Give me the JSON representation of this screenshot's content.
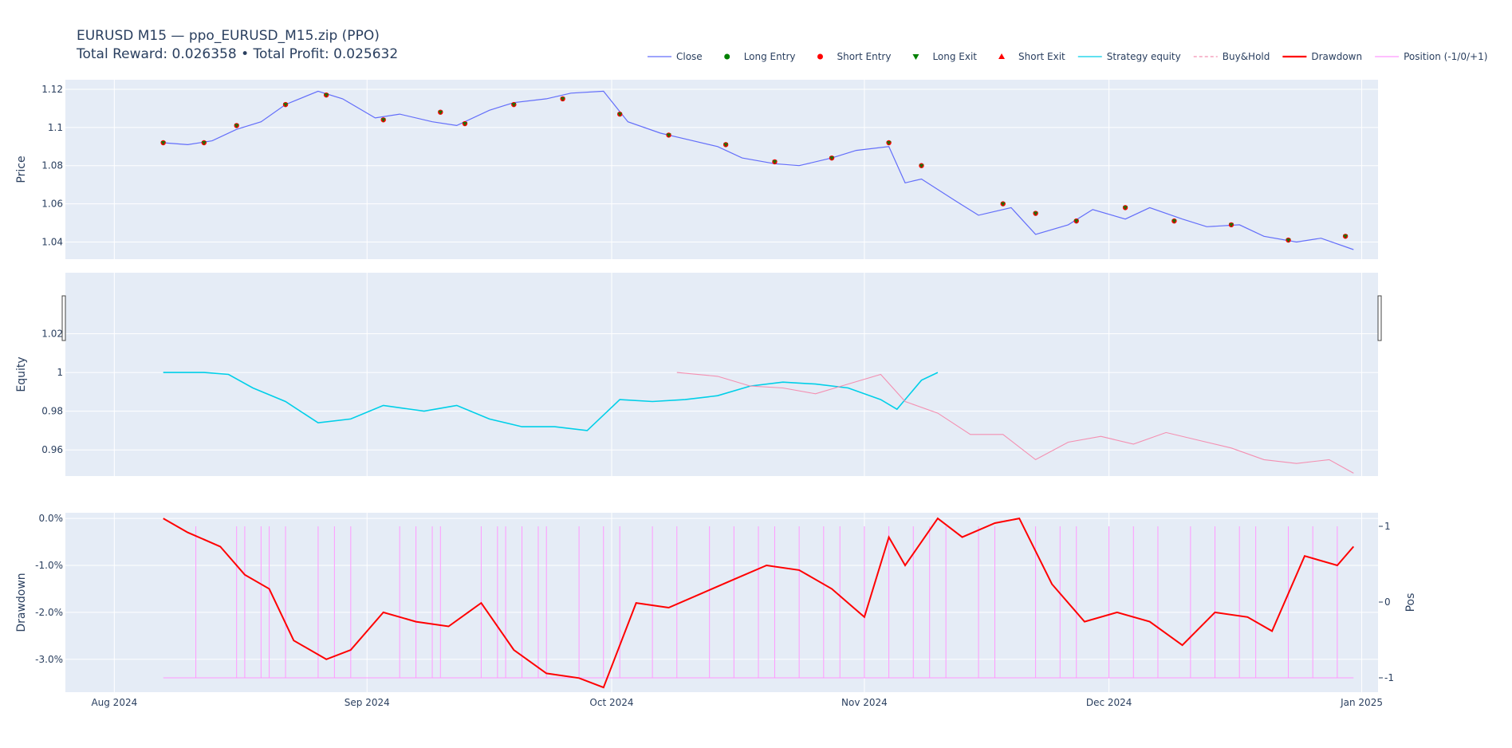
{
  "title": {
    "line1": "EURUSD M15 — ppo_EURUSD_M15.zip (PPO)",
    "line2": "Total Reward: 0.026358 • Total Profit: 0.025632"
  },
  "legend": [
    {
      "label": "Close",
      "symbol": "line",
      "color": "#636efa"
    },
    {
      "label": "Long Entry",
      "symbol": "dot",
      "color": "#008000"
    },
    {
      "label": "Short Entry",
      "symbol": "dot",
      "color": "#ff0000"
    },
    {
      "label": "Long Exit",
      "symbol": "triangle-down",
      "color": "#008000"
    },
    {
      "label": "Short Exit",
      "symbol": "triangle-up",
      "color": "#ff0000"
    },
    {
      "label": "Strategy equity",
      "symbol": "line",
      "color": "#00cfe8"
    },
    {
      "label": "Buy&Hold",
      "symbol": "dash",
      "color": "#f48fb1"
    },
    {
      "label": "Drawdown",
      "symbol": "thick-line",
      "color": "#ff0000"
    },
    {
      "label": "Position (-1/0/+1)",
      "symbol": "line",
      "color": "#ff99ff"
    }
  ],
  "chart_data": [
    {
      "panel": "price",
      "type": "line",
      "ylabel": "Price",
      "ylim": [
        1.031,
        1.125
      ],
      "yticks": [
        1.04,
        1.06,
        1.08,
        1.1,
        1.12
      ],
      "ytick_labels": [
        "1.04",
        "1.06",
        "1.08",
        "1.1",
        "1.12"
      ],
      "series": [
        {
          "name": "Close",
          "color": "#636efa",
          "x": [
            "2024-08-07",
            "2024-08-10",
            "2024-08-13",
            "2024-08-16",
            "2024-08-19",
            "2024-08-22",
            "2024-08-26",
            "2024-08-29",
            "2024-09-02",
            "2024-09-05",
            "2024-09-09",
            "2024-09-12",
            "2024-09-16",
            "2024-09-19",
            "2024-09-23",
            "2024-09-26",
            "2024-09-30",
            "2024-10-03",
            "2024-10-07",
            "2024-10-10",
            "2024-10-14",
            "2024-10-17",
            "2024-10-21",
            "2024-10-24",
            "2024-10-28",
            "2024-10-31",
            "2024-11-04",
            "2024-11-06",
            "2024-11-08",
            "2024-11-12",
            "2024-11-15",
            "2024-11-19",
            "2024-11-22",
            "2024-11-26",
            "2024-11-29",
            "2024-12-03",
            "2024-12-06",
            "2024-12-10",
            "2024-12-13",
            "2024-12-17",
            "2024-12-20",
            "2024-12-24",
            "2024-12-27",
            "2024-12-31"
          ],
          "y": [
            1.092,
            1.091,
            1.093,
            1.099,
            1.103,
            1.112,
            1.119,
            1.115,
            1.105,
            1.107,
            1.103,
            1.101,
            1.109,
            1.113,
            1.115,
            1.118,
            1.119,
            1.103,
            1.097,
            1.094,
            1.09,
            1.084,
            1.081,
            1.08,
            1.084,
            1.088,
            1.09,
            1.071,
            1.073,
            1.062,
            1.054,
            1.058,
            1.044,
            1.049,
            1.057,
            1.052,
            1.058,
            1.052,
            1.048,
            1.049,
            1.043,
            1.04,
            1.042,
            1.036
          ]
        }
      ],
      "markers": [
        {
          "x": [
            "2024-08-07",
            "2024-08-12",
            "2024-08-16",
            "2024-08-22",
            "2024-08-27",
            "2024-09-03",
            "2024-09-10",
            "2024-09-13",
            "2024-09-19",
            "2024-09-25",
            "2024-10-02",
            "2024-10-08",
            "2024-10-15",
            "2024-10-21",
            "2024-10-28",
            "2024-11-04",
            "2024-11-08",
            "2024-11-18",
            "2024-11-22",
            "2024-11-27",
            "2024-12-03",
            "2024-12-09",
            "2024-12-16",
            "2024-12-23",
            "2024-12-30"
          ],
          "y": [
            1.092,
            1.092,
            1.101,
            1.112,
            1.117,
            1.104,
            1.108,
            1.102,
            1.112,
            1.115,
            1.107,
            1.096,
            1.091,
            1.082,
            1.084,
            1.092,
            1.08,
            1.06,
            1.055,
            1.051,
            1.058,
            1.051,
            1.049,
            1.041,
            1.043
          ]
        }
      ]
    },
    {
      "panel": "equity",
      "type": "line",
      "ylabel": "Equity",
      "ylim": [
        0.9465,
        1.0515
      ],
      "yticks": [
        0.96,
        0.98,
        1,
        1.02
      ],
      "ytick_labels": [
        "0.96",
        "0.98",
        "1",
        "1.02"
      ],
      "series": [
        {
          "name": "Strategy equity",
          "color": "#00cfe8",
          "x": [
            "2024-08-07",
            "2024-08-12",
            "2024-08-15",
            "2024-08-18",
            "2024-08-22",
            "2024-08-26",
            "2024-08-30",
            "2024-09-03",
            "2024-09-08",
            "2024-09-12",
            "2024-09-16",
            "2024-09-20",
            "2024-09-24",
            "2024-09-28",
            "2024-10-02",
            "2024-10-06",
            "2024-10-10",
            "2024-10-14",
            "2024-10-18",
            "2024-10-22",
            "2024-10-26",
            "2024-10-30",
            "2024-11-03",
            "2024-11-05",
            "2024-11-08",
            "2024-11-10"
          ],
          "y": [
            1.0,
            1.0,
            0.999,
            0.992,
            0.985,
            0.974,
            0.976,
            0.983,
            0.98,
            0.983,
            0.976,
            0.972,
            0.972,
            0.97,
            0.986,
            0.985,
            0.986,
            0.988,
            0.993,
            0.995,
            0.994,
            0.992,
            0.986,
            0.981,
            0.996,
            1.0
          ]
        },
        {
          "name": "Buy&Hold",
          "color": "#f48fb1",
          "x": [
            "2024-10-09",
            "2024-10-14",
            "2024-10-18",
            "2024-10-22",
            "2024-10-26",
            "2024-10-30",
            "2024-11-03",
            "2024-11-06",
            "2024-11-10",
            "2024-11-14",
            "2024-11-18",
            "2024-11-22",
            "2024-11-26",
            "2024-11-30",
            "2024-12-04",
            "2024-12-08",
            "2024-12-12",
            "2024-12-16",
            "2024-12-20",
            "2024-12-24",
            "2024-12-28",
            "2024-12-31"
          ],
          "y": [
            1.0,
            0.998,
            0.993,
            0.992,
            0.989,
            0.994,
            0.999,
            0.985,
            0.979,
            0.968,
            0.968,
            0.955,
            0.964,
            0.967,
            0.963,
            0.969,
            0.965,
            0.961,
            0.955,
            0.953,
            0.955,
            0.948
          ]
        }
      ]
    },
    {
      "panel": "drawdown",
      "type": "line",
      "ylabel": "Drawdown",
      "y2label": "Pos",
      "ylim": [
        -0.037,
        0.0012
      ],
      "yticks": [
        0.0,
        -0.01,
        -0.02,
        -0.03
      ],
      "ytick_labels": [
        "0.0%",
        "-1.0%",
        "-2.0%",
        "-3.0%"
      ],
      "y2ticks": [
        1,
        0,
        -1
      ],
      "y2tick_labels": [
        "1",
        "0",
        "-1"
      ],
      "series": [
        {
          "name": "Drawdown",
          "color": "#ff0000",
          "x": [
            "2024-08-07",
            "2024-08-10",
            "2024-08-14",
            "2024-08-17",
            "2024-08-20",
            "2024-08-23",
            "2024-08-27",
            "2024-08-30",
            "2024-09-03",
            "2024-09-07",
            "2024-09-11",
            "2024-09-15",
            "2024-09-19",
            "2024-09-23",
            "2024-09-27",
            "2024-09-30",
            "2024-10-04",
            "2024-10-08",
            "2024-10-12",
            "2024-10-16",
            "2024-10-20",
            "2024-10-24",
            "2024-10-28",
            "2024-11-01",
            "2024-11-04",
            "2024-11-06",
            "2024-11-10",
            "2024-11-13",
            "2024-11-17",
            "2024-11-20",
            "2024-11-24",
            "2024-11-28",
            "2024-12-02",
            "2024-12-06",
            "2024-12-10",
            "2024-12-14",
            "2024-12-18",
            "2024-12-21",
            "2024-12-25",
            "2024-12-29",
            "2024-12-31"
          ],
          "y": [
            0.0,
            -0.003,
            -0.006,
            -0.012,
            -0.015,
            -0.026,
            -0.03,
            -0.028,
            -0.02,
            -0.022,
            -0.023,
            -0.018,
            -0.028,
            -0.033,
            -0.034,
            -0.036,
            -0.018,
            -0.019,
            -0.016,
            -0.013,
            -0.01,
            -0.011,
            -0.015,
            -0.021,
            -0.004,
            -0.01,
            0.0,
            -0.004,
            -0.001,
            0.0,
            -0.014,
            -0.022,
            -0.02,
            -0.022,
            -0.027,
            -0.02,
            -0.021,
            -0.024,
            -0.008,
            -0.01,
            -0.006
          ]
        },
        {
          "name": "Position (-1/0/+1)",
          "color": "#ff99ff",
          "spikes_x": [
            "2024-08-11",
            "2024-08-16",
            "2024-08-17",
            "2024-08-19",
            "2024-08-20",
            "2024-08-22",
            "2024-08-26",
            "2024-08-28",
            "2024-08-30",
            "2024-09-05",
            "2024-09-07",
            "2024-09-09",
            "2024-09-10",
            "2024-09-15",
            "2024-09-17",
            "2024-09-18",
            "2024-09-20",
            "2024-09-22",
            "2024-09-23",
            "2024-09-27",
            "2024-09-30",
            "2024-10-02",
            "2024-10-06",
            "2024-10-09",
            "2024-10-13",
            "2024-10-16",
            "2024-10-19",
            "2024-10-21",
            "2024-10-24",
            "2024-10-27",
            "2024-10-29",
            "2024-11-01",
            "2024-11-04",
            "2024-11-07",
            "2024-11-09",
            "2024-11-11",
            "2024-11-15",
            "2024-11-17",
            "2024-11-22",
            "2024-11-25",
            "2024-11-27",
            "2024-12-01",
            "2024-12-04",
            "2024-12-07",
            "2024-12-11",
            "2024-12-14",
            "2024-12-17",
            "2024-12-19",
            "2024-12-23",
            "2024-12-26",
            "2024-12-29"
          ]
        }
      ]
    }
  ],
  "x_axis": {
    "start": "2024-07-26",
    "end": "2025-01-03",
    "ticks": [
      "2024-08-01",
      "2024-09-01",
      "2024-10-01",
      "2024-11-01",
      "2024-12-01",
      "2025-01-01"
    ],
    "tick_labels": [
      "Aug 2024",
      "Sep 2024",
      "Oct 2024",
      "Nov 2024",
      "Dec 2024",
      "Jan 2025"
    ]
  }
}
